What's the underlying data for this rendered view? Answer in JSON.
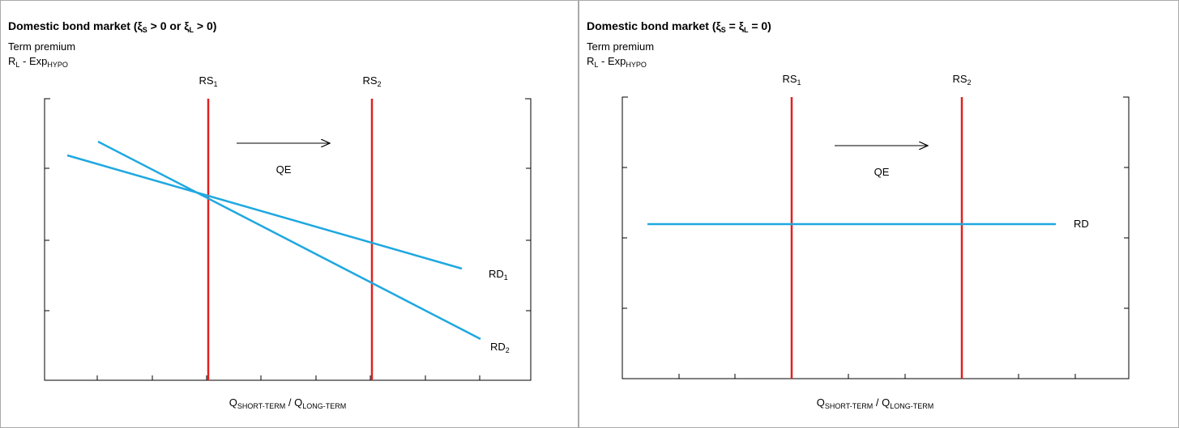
{
  "panels": [
    {
      "title": [
        "Domestic bond market (ξ",
        "S",
        " > 0 or ξ",
        "L",
        " > 0)"
      ],
      "y_label": [
        "Term premium"
      ],
      "y_label_2": [
        "R",
        "L",
        " - Exp",
        "HYPO"
      ],
      "x_label": [
        "Q",
        "SHORT-TERM",
        " / Q",
        "LONG-TERM"
      ],
      "supply_labels": [
        [
          "RS",
          "1"
        ],
        [
          "RS",
          "2"
        ]
      ],
      "shift_label": [
        "QE"
      ],
      "demand_labels": [
        [
          "RD",
          "1"
        ],
        [
          "RD",
          "2"
        ]
      ]
    },
    {
      "title": [
        "Domestic bond market (ξ",
        "S",
        " = ξ",
        "L",
        " = 0)"
      ],
      "y_label": [
        "Term premium"
      ],
      "y_label_2": [
        "R",
        "L",
        " - Exp",
        "HYPO"
      ],
      "x_label": [
        "Q",
        "SHORT-TERM",
        " / Q",
        "LONG-TERM"
      ],
      "supply_labels": [
        [
          "RS",
          "1"
        ],
        [
          "RS",
          "2"
        ]
      ],
      "shift_label": [
        "QE"
      ],
      "demand_labels": [
        [
          "RD"
        ]
      ]
    }
  ]
}
